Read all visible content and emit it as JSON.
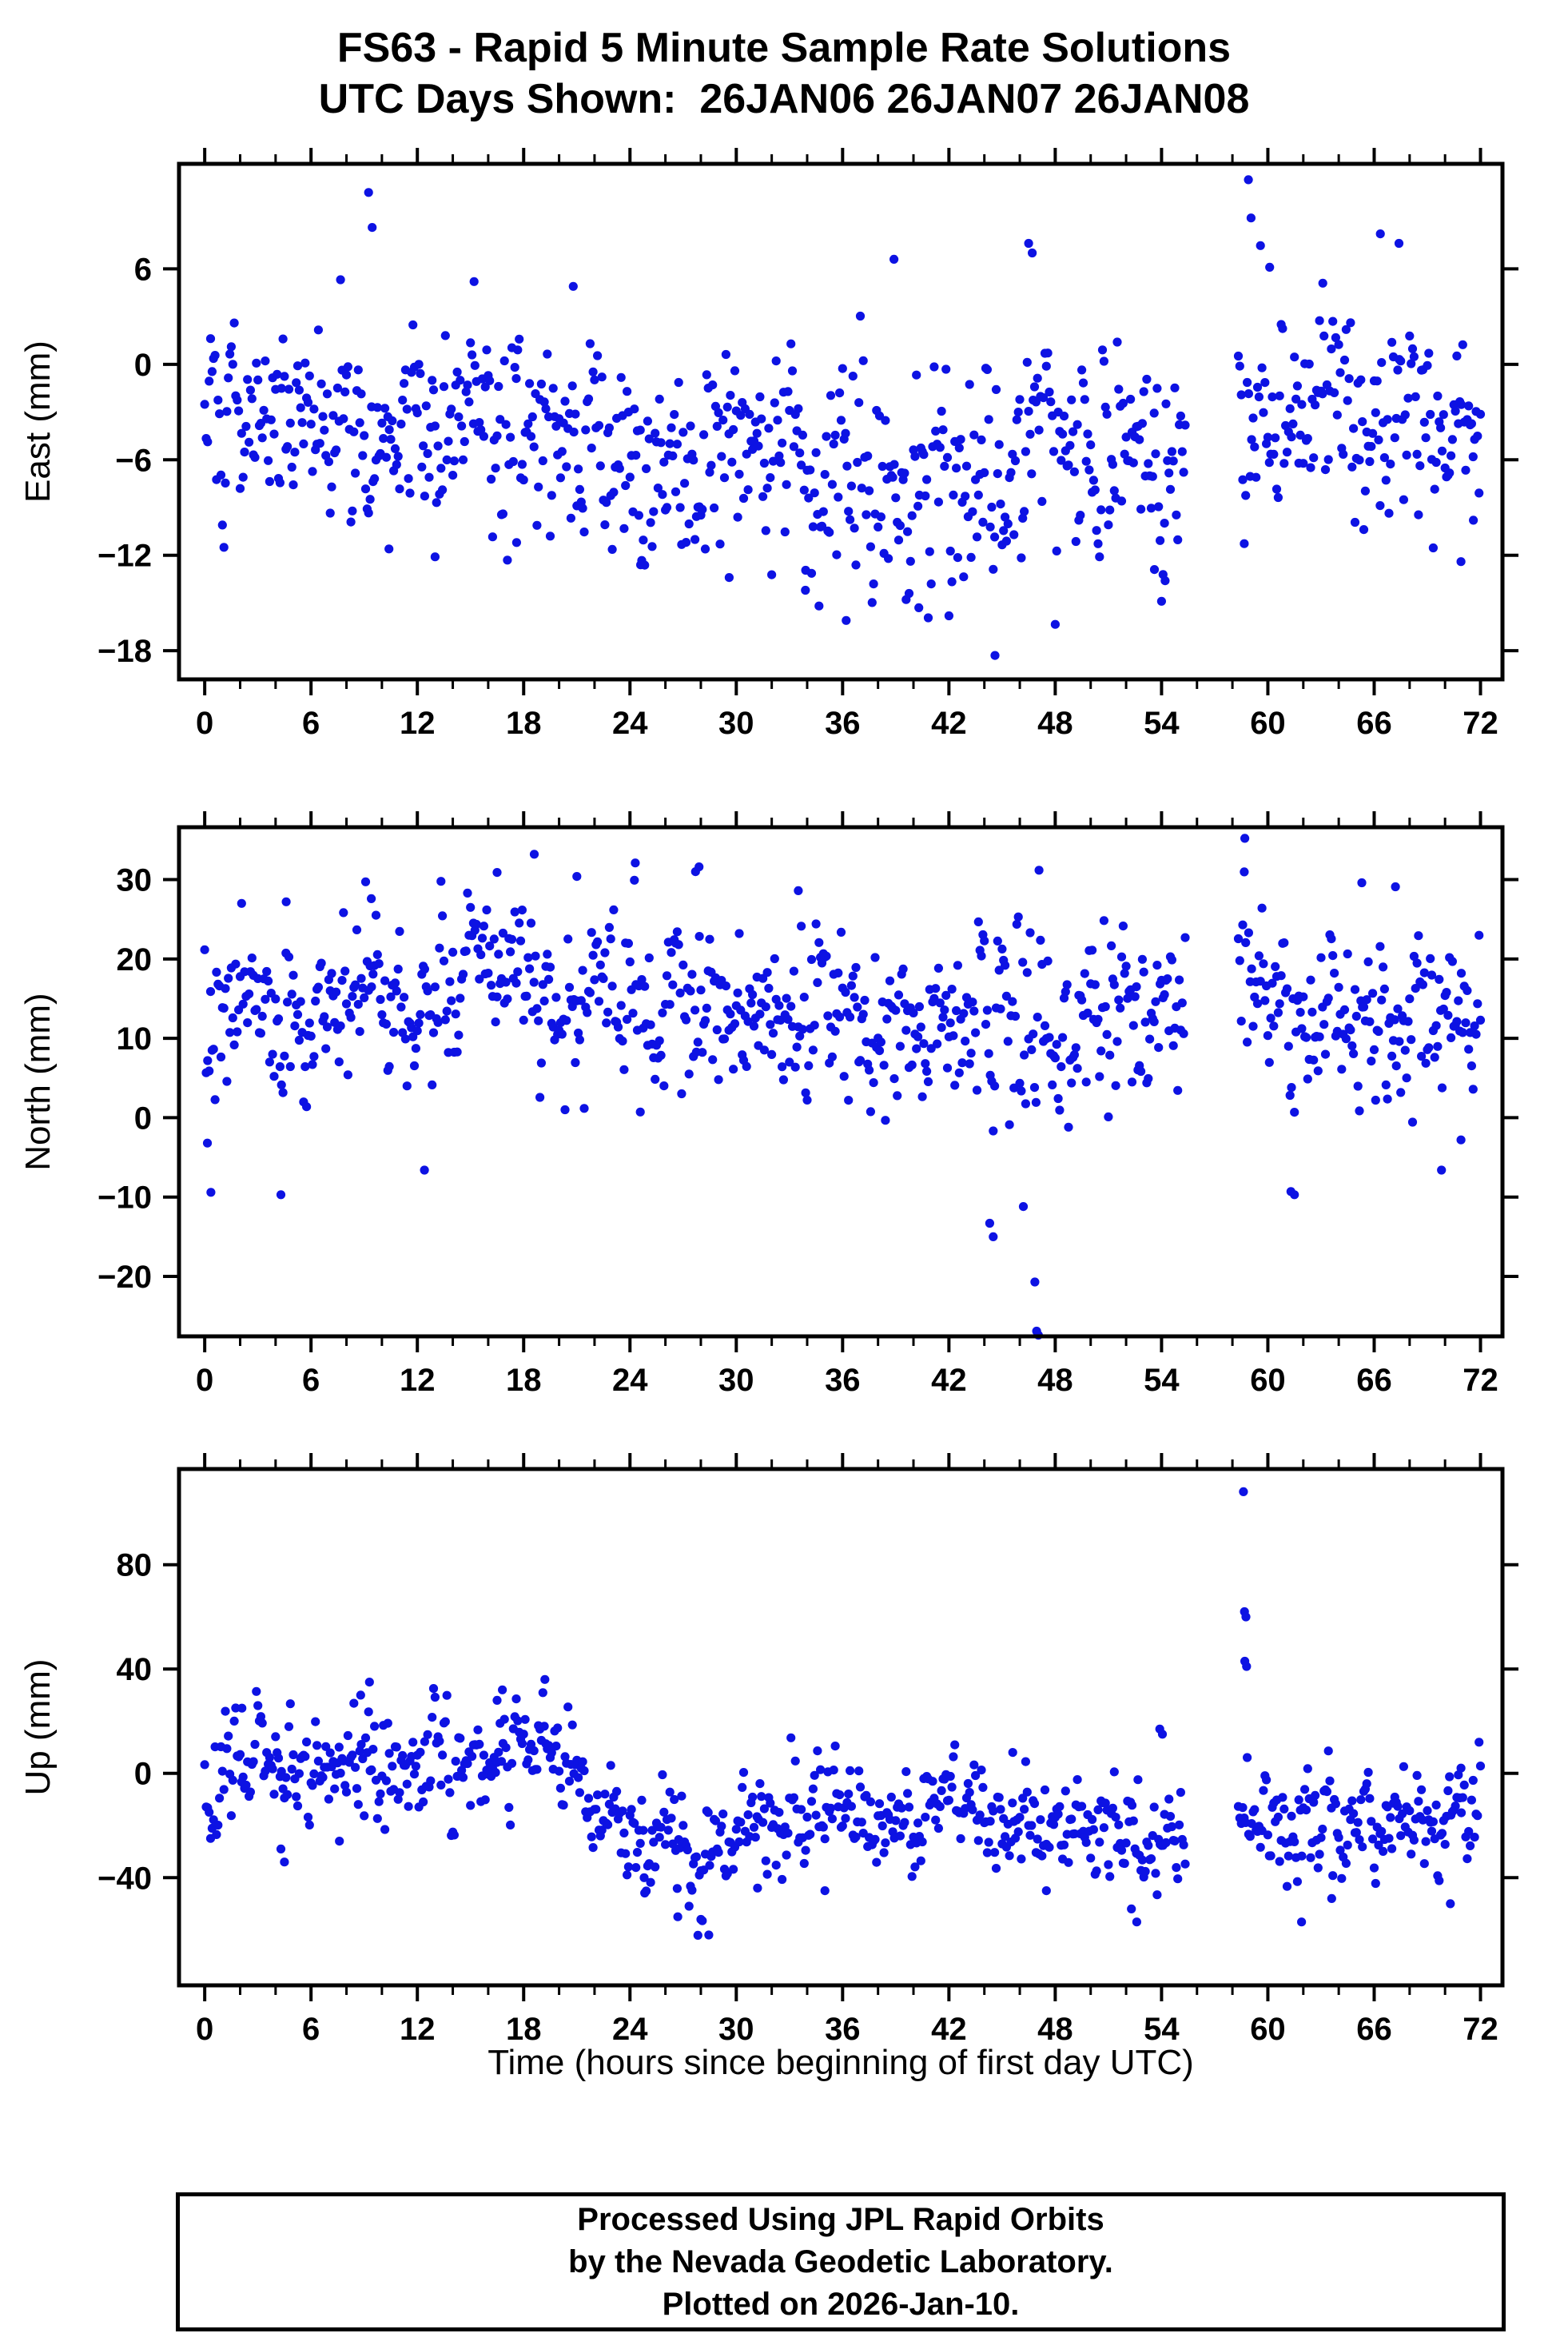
{
  "page": {
    "background": "#ffffff",
    "frame_color": "#000000"
  },
  "title": {
    "line1": "FS63 - Rapid 5 Minute Sample Rate Solutions",
    "line2": "UTC Days Shown:  26JAN06 26JAN07 26JAN08"
  },
  "x_axis": {
    "label": "Time (hours since beginning of first day UTC)",
    "lim": [
      -1.45,
      73.24
    ],
    "major_ticks": [
      0,
      6,
      12,
      18,
      24,
      30,
      36,
      42,
      48,
      54,
      60,
      66,
      72
    ],
    "minor_step": 2
  },
  "marker": {
    "color": "#0d12e3",
    "radius": 5.6,
    "shape": "circle"
  },
  "sampling": {
    "step_hours": 0.0833333,
    "gap_hours": [
      55.4,
      58.3
    ],
    "points_per_panel_approx": 830
  },
  "footer": {
    "line1": "Processed Using JPL Rapid Orbits",
    "line2": "by the Nevada Geodetic Laboratory.",
    "line3": "Plotted on 2026-Jan-10."
  },
  "chart_data": [
    {
      "type": "scatter",
      "name": "east",
      "ylabel": "East (mm)",
      "ylim": [
        -19.8,
        12.6
      ],
      "yticks": [
        6,
        0,
        -6,
        -12,
        -18
      ],
      "y_clip": [
        -18.5,
        11.5
      ],
      "seed": 101,
      "ar": 0.35,
      "mean_path": [
        [
          0,
          -3.0
        ],
        [
          4,
          -3.8
        ],
        [
          8,
          -3.2
        ],
        [
          12,
          -3.8
        ],
        [
          16,
          -4.0
        ],
        [
          20,
          -4.6
        ],
        [
          24,
          -5.2
        ],
        [
          28,
          -5.6
        ],
        [
          32,
          -5.2
        ],
        [
          36,
          -6.0
        ],
        [
          40,
          -6.4
        ],
        [
          44,
          -6.0
        ],
        [
          48,
          -5.8
        ],
        [
          52,
          -5.6
        ],
        [
          55.3,
          -5.2
        ],
        [
          58.5,
          -1.6
        ],
        [
          60,
          -2.4
        ],
        [
          63,
          -3.2
        ],
        [
          66,
          -2.6
        ],
        [
          69,
          -3.2
        ],
        [
          72,
          -3.6
        ]
      ],
      "sd_path": [
        [
          0,
          2.8
        ],
        [
          12,
          2.9
        ],
        [
          24,
          3.2
        ],
        [
          36,
          4.1
        ],
        [
          48,
          3.7
        ],
        [
          55.3,
          3.3
        ],
        [
          58.5,
          3.5
        ],
        [
          66,
          3.4
        ],
        [
          72,
          3.2
        ]
      ],
      "outliers": [
        [
          9.25,
          10.8
        ],
        [
          9.45,
          8.6
        ],
        [
          10.4,
          -11.6
        ],
        [
          13.0,
          -12.1
        ],
        [
          15.2,
          5.2
        ],
        [
          17.6,
          -11.2
        ],
        [
          20.8,
          4.9
        ],
        [
          24.6,
          -12.6
        ],
        [
          29.6,
          -13.4
        ],
        [
          33.9,
          -14.2
        ],
        [
          36.2,
          -16.1
        ],
        [
          38.9,
          6.6
        ],
        [
          40.3,
          -15.3
        ],
        [
          44.6,
          -18.3
        ],
        [
          46.5,
          7.6
        ],
        [
          46.7,
          7.0
        ],
        [
          53.6,
          -12.9
        ],
        [
          54.2,
          -13.6
        ],
        [
          58.9,
          11.6
        ],
        [
          59.05,
          9.2
        ],
        [
          60.1,
          6.1
        ],
        [
          63.1,
          5.1
        ],
        [
          66.35,
          8.2
        ],
        [
          67.4,
          7.6
        ],
        [
          70.9,
          -12.4
        ],
        [
          71.6,
          -9.8
        ]
      ]
    },
    {
      "type": "scatter",
      "name": "north",
      "ylabel": "North (mm)",
      "ylim": [
        -27.55,
        36.6
      ],
      "yticks": [
        30,
        20,
        10,
        0,
        -10,
        -20
      ],
      "y_clip": [
        -25,
        35
      ],
      "seed": 202,
      "ar": 0.35,
      "mean_path": [
        [
          0,
          11
        ],
        [
          3,
          14
        ],
        [
          6,
          14.5
        ],
        [
          9,
          15.5
        ],
        [
          12,
          13
        ],
        [
          15,
          16.5
        ],
        [
          18,
          17.5
        ],
        [
          21,
          15.5
        ],
        [
          24,
          14.5
        ],
        [
          27,
          14
        ],
        [
          30,
          12
        ],
        [
          33,
          13.5
        ],
        [
          36,
          13.5
        ],
        [
          39,
          12.5
        ],
        [
          42,
          13.5
        ],
        [
          45,
          12
        ],
        [
          48,
          12.5
        ],
        [
          51,
          13.5
        ],
        [
          55.3,
          12
        ],
        [
          58.5,
          17
        ],
        [
          60,
          15
        ],
        [
          63,
          12.5
        ],
        [
          66,
          13
        ],
        [
          69,
          13.5
        ],
        [
          72,
          12
        ]
      ],
      "sd_path": [
        [
          0,
          5.5
        ],
        [
          12,
          5
        ],
        [
          24,
          5.5
        ],
        [
          36,
          5.5
        ],
        [
          48,
          6
        ],
        [
          55.3,
          5.5
        ],
        [
          58.5,
          4.5
        ],
        [
          66,
          5.5
        ],
        [
          72,
          5
        ]
      ],
      "outliers": [
        [
          0.15,
          -3.2
        ],
        [
          0.35,
          -9.4
        ],
        [
          4.3,
          -9.7
        ],
        [
          4.6,
          27.2
        ],
        [
          9.4,
          27.6
        ],
        [
          12.4,
          -6.6
        ],
        [
          16.5,
          30.9
        ],
        [
          18.6,
          33.2
        ],
        [
          21.0,
          30.4
        ],
        [
          24.3,
          32.1
        ],
        [
          27.7,
          31.0
        ],
        [
          27.9,
          31.6
        ],
        [
          33.5,
          28.6
        ],
        [
          44.3,
          -13.3
        ],
        [
          44.5,
          -15.0
        ],
        [
          46.2,
          -11.2
        ],
        [
          46.85,
          -20.7
        ],
        [
          46.95,
          -26.9
        ],
        [
          47.05,
          -27.4
        ],
        [
          58.7,
          35.2
        ],
        [
          61.3,
          -9.3
        ],
        [
          61.5,
          -9.7
        ],
        [
          65.3,
          29.6
        ],
        [
          67.2,
          29.1
        ],
        [
          69.8,
          -6.6
        ],
        [
          70.9,
          -2.8
        ]
      ]
    },
    {
      "type": "scatter",
      "name": "up",
      "ylabel": "Up (mm)",
      "ylim": [
        -81.3,
        116.7
      ],
      "yticks": [
        80,
        40,
        0,
        -40
      ],
      "y_clip": [
        -70,
        112
      ],
      "seed": 303,
      "ar": 0.45,
      "mean_path": [
        [
          0,
          2
        ],
        [
          3,
          4
        ],
        [
          6,
          3
        ],
        [
          9,
          7
        ],
        [
          12,
          4
        ],
        [
          15,
          6
        ],
        [
          18,
          7
        ],
        [
          20,
          3
        ],
        [
          22,
          -5
        ],
        [
          24,
          -18
        ],
        [
          26,
          -27
        ],
        [
          28,
          -30
        ],
        [
          30,
          -24
        ],
        [
          33,
          -17
        ],
        [
          36,
          -15
        ],
        [
          39,
          -14
        ],
        [
          42,
          -16
        ],
        [
          45,
          -15
        ],
        [
          48,
          -19
        ],
        [
          50,
          -25
        ],
        [
          52,
          -28
        ],
        [
          54,
          -25
        ],
        [
          55.3,
          -23
        ],
        [
          58.5,
          -17
        ],
        [
          60,
          -20
        ],
        [
          63,
          -22
        ],
        [
          66,
          -20
        ],
        [
          69,
          -23
        ],
        [
          72,
          -15
        ]
      ],
      "sd_path": [
        [
          0,
          12
        ],
        [
          12,
          11
        ],
        [
          24,
          11
        ],
        [
          33,
          9
        ],
        [
          48,
          10
        ],
        [
          55.3,
          11
        ],
        [
          58.5,
          9
        ],
        [
          66,
          10
        ],
        [
          72,
          10
        ]
      ],
      "outliers": [
        [
          2.1,
          25
        ],
        [
          4.3,
          -29
        ],
        [
          4.5,
          -34
        ],
        [
          7.6,
          -26
        ],
        [
          8.8,
          30
        ],
        [
          9.3,
          35
        ],
        [
          16.5,
          28
        ],
        [
          16.8,
          32
        ],
        [
          19.2,
          36
        ],
        [
          24.8,
          -40
        ],
        [
          26.7,
          -55
        ],
        [
          28.0,
          -56
        ],
        [
          28.45,
          -62
        ],
        [
          31.2,
          -44
        ],
        [
          35.0,
          -45
        ],
        [
          45.6,
          8
        ],
        [
          47.5,
          -45
        ],
        [
          52.3,
          -52
        ],
        [
          52.6,
          -57
        ],
        [
          53.9,
          17
        ],
        [
          54.05,
          15
        ],
        [
          58.62,
          108
        ],
        [
          58.68,
          62
        ],
        [
          58.76,
          60
        ],
        [
          58.7,
          43
        ],
        [
          58.8,
          41
        ],
        [
          61.9,
          -57
        ],
        [
          63.6,
          -48
        ],
        [
          70.3,
          -50
        ],
        [
          70.9,
          2
        ]
      ]
    }
  ]
}
